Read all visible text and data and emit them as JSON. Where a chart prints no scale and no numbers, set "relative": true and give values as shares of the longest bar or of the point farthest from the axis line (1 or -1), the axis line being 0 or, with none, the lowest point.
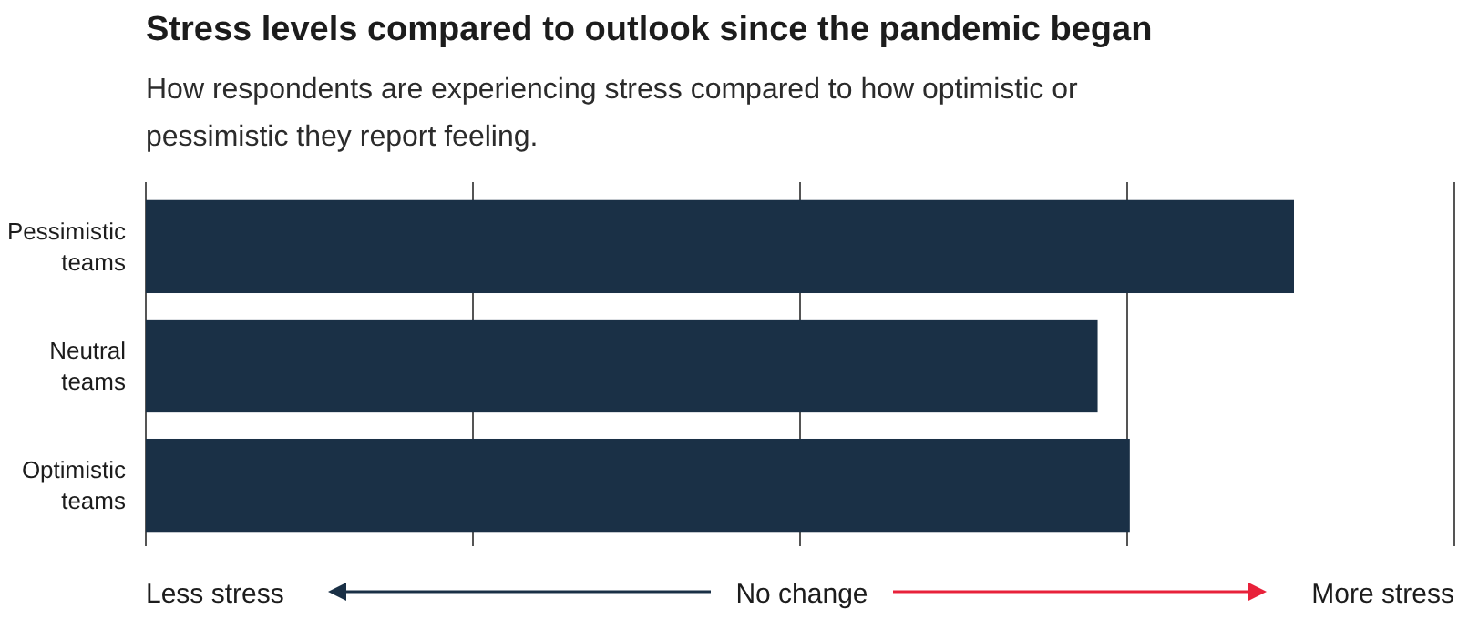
{
  "chart_data": {
    "type": "bar",
    "orientation": "horizontal",
    "relative": true,
    "title": "Stress levels compared to outlook since the pandemic began",
    "subtitle": "How respondents are experiencing stress compared to how optimistic or pessimistic they report feeling.",
    "categories": [
      "Pessimistic teams",
      "Neutral teams",
      "Optimistic teams"
    ],
    "values": [
      1,
      0.829,
      0.857
    ],
    "color": "#1a3046",
    "grid": "x",
    "annotations": [
      "Less stress",
      "No change",
      "More stress"
    ]
  }
}
